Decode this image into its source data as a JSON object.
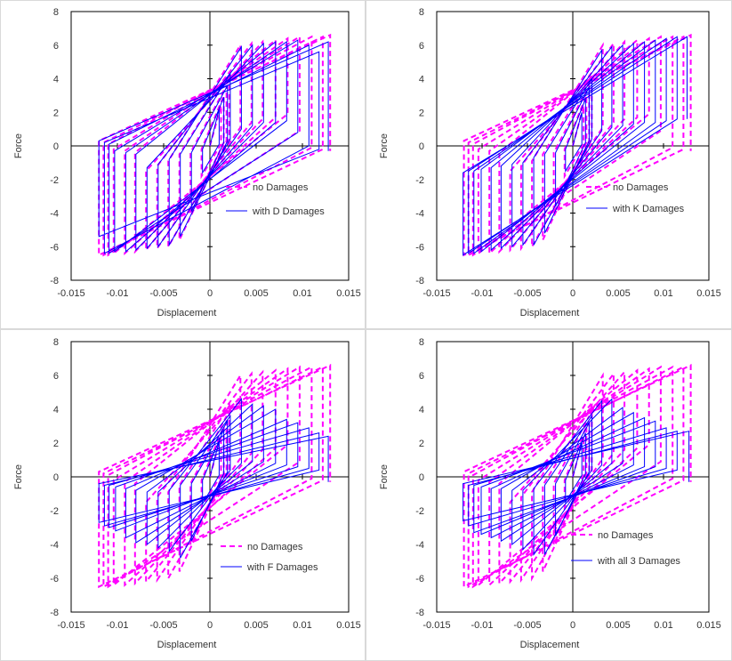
{
  "chart_data": [
    {
      "type": "line",
      "xlabel": "Displacement",
      "ylabel": "Force",
      "xlim": [
        -0.015,
        0.015
      ],
      "ylim": [
        -8,
        8
      ],
      "xticks": [
        "-0.015",
        "-0.01",
        "-0.005",
        "0",
        "0.005",
        "0.01",
        "0.015"
      ],
      "yticks": [
        "8",
        "6",
        "4",
        "2",
        "0",
        "-2",
        "-4",
        "-6",
        "-8"
      ],
      "legend_position": "lower-right",
      "series": [
        {
          "name": "no Damages",
          "style": "dashed",
          "color": "#ff00ff",
          "x": [
            0,
            0.0012,
            0.0012,
            -0.0009,
            -0.0009,
            0.0015,
            0.0015,
            -0.0021,
            -0.0021,
            0.0018,
            0.0018,
            -0.0033,
            -0.0033,
            0.0021,
            0.0021,
            -0.0045,
            -0.0045,
            0.0033,
            0.0033,
            -0.0057,
            -0.0057,
            0.0045,
            0.0045,
            -0.0069,
            -0.0069,
            0.0057,
            0.0057,
            -0.0081,
            -0.0081,
            0.0071,
            0.0071,
            -0.0092,
            -0.0092,
            0.0084,
            0.0084,
            -0.0104,
            -0.0104,
            0.0097,
            0.0097,
            -0.011,
            -0.011,
            0.011,
            0.011,
            -0.0115,
            -0.0115,
            0.0122,
            0.0122,
            -0.012,
            -0.012,
            0.013,
            0.013
          ],
          "y": [
            0,
            2.4,
            0.1,
            -1.8,
            -0.2,
            3.0,
            0.2,
            -4.0,
            -0.4,
            3.6,
            0.3,
            -5.6,
            -0.5,
            4.2,
            0.4,
            -6.0,
            -0.9,
            6.0,
            1.1,
            -6.1,
            -1.2,
            6.1,
            1.4,
            -6.2,
            -1.5,
            6.2,
            1.6,
            -6.3,
            -0.4,
            6.3,
            1.7,
            -6.4,
            -0.3,
            6.4,
            1.9,
            -6.4,
            -0.2,
            6.5,
            0.9,
            -6.5,
            0.1,
            6.5,
            -0.1,
            -6.5,
            0.2,
            6.5,
            -0.2,
            -6.5,
            0.3,
            6.6,
            -0.3
          ]
        },
        {
          "name": "with D Damages",
          "style": "solid",
          "color": "#0000ff",
          "x": [
            0,
            0.001,
            0.001,
            -0.0008,
            -0.0008,
            0.0015,
            0.0015,
            -0.002,
            -0.002,
            0.0019,
            0.0019,
            -0.0032,
            -0.0032,
            0.0022,
            0.0022,
            -0.0044,
            -0.0044,
            0.0034,
            0.0034,
            -0.0056,
            -0.0056,
            0.0046,
            0.0046,
            -0.0068,
            -0.0068,
            0.0058,
            0.0058,
            -0.008,
            -0.008,
            0.0071,
            0.0071,
            -0.0091,
            -0.0091,
            0.0083,
            0.0083,
            -0.0103,
            -0.0103,
            0.0095,
            0.0095,
            -0.0109,
            -0.0109,
            0.0107,
            0.0107,
            -0.0114,
            -0.0114,
            0.0118,
            0.0118,
            -0.012,
            -0.012,
            0.0128,
            0.0128
          ],
          "y": [
            0,
            2.2,
            0.1,
            -1.6,
            -0.2,
            2.9,
            0.2,
            -3.9,
            -0.4,
            3.6,
            0.3,
            -5.4,
            -0.5,
            4.3,
            0.4,
            -5.9,
            -0.8,
            5.9,
            1.0,
            -6.0,
            -1.1,
            6.0,
            1.2,
            -6.1,
            -1.3,
            6.1,
            1.4,
            -6.2,
            -0.5,
            6.2,
            1.4,
            -6.3,
            -0.4,
            6.2,
            1.5,
            -6.3,
            -0.3,
            6.3,
            0.8,
            -6.4,
            0.1,
            6.0,
            0.0,
            -6.4,
            0.2,
            5.6,
            -0.2,
            -5.4,
            0.3,
            6.2,
            -0.3
          ]
        }
      ]
    },
    {
      "type": "line",
      "xlabel": "Displacement",
      "ylabel": "Force",
      "xlim": [
        -0.015,
        0.015
      ],
      "ylim": [
        -8,
        8
      ],
      "xticks": [
        "-0.015",
        "-0.01",
        "-0.005",
        "0",
        "0.005",
        "0.01",
        "0.015"
      ],
      "yticks": [
        "8",
        "6",
        "4",
        "2",
        "0",
        "-2",
        "-4",
        "-6",
        "-8"
      ],
      "legend_position": "lower-right",
      "series": [
        {
          "name": "no Damages",
          "style": "dashed",
          "color": "#ff00ff",
          "x": [
            0,
            0.0012,
            0.0012,
            -0.0009,
            -0.0009,
            0.0015,
            0.0015,
            -0.0021,
            -0.0021,
            0.0018,
            0.0018,
            -0.0033,
            -0.0033,
            0.0021,
            0.0021,
            -0.0045,
            -0.0045,
            0.0033,
            0.0033,
            -0.0057,
            -0.0057,
            0.0045,
            0.0045,
            -0.0069,
            -0.0069,
            0.0057,
            0.0057,
            -0.0081,
            -0.0081,
            0.0071,
            0.0071,
            -0.0092,
            -0.0092,
            0.0084,
            0.0084,
            -0.0104,
            -0.0104,
            0.0097,
            0.0097,
            -0.011,
            -0.011,
            0.011,
            0.011,
            -0.0115,
            -0.0115,
            0.0122,
            0.0122,
            -0.012,
            -0.012,
            0.013,
            0.013
          ],
          "y": [
            0,
            2.4,
            0.1,
            -1.8,
            -0.2,
            3.0,
            0.2,
            -4.0,
            -0.4,
            3.6,
            0.3,
            -5.6,
            -0.5,
            4.2,
            0.4,
            -6.0,
            -0.9,
            6.0,
            1.1,
            -6.1,
            -1.2,
            6.1,
            1.4,
            -6.2,
            -1.5,
            6.2,
            1.6,
            -6.3,
            -0.4,
            6.3,
            1.7,
            -6.4,
            -0.3,
            6.4,
            1.9,
            -6.4,
            -0.2,
            6.5,
            0.9,
            -6.5,
            0.1,
            6.5,
            -0.1,
            -6.5,
            0.2,
            6.5,
            -0.2,
            -6.5,
            0.3,
            6.6,
            -0.3
          ]
        },
        {
          "name": "with K Damages",
          "style": "solid",
          "color": "#0000ff",
          "x": [
            0,
            0.001,
            0.001,
            -0.0008,
            -0.0008,
            0.0014,
            0.0014,
            -0.0019,
            -0.0019,
            0.0018,
            0.0018,
            -0.0031,
            -0.0031,
            0.0021,
            0.0021,
            -0.0043,
            -0.0043,
            0.0032,
            0.0032,
            -0.0055,
            -0.0055,
            0.0043,
            0.0043,
            -0.0067,
            -0.0067,
            0.0055,
            0.0055,
            -0.0079,
            -0.0079,
            0.0067,
            0.0067,
            -0.009,
            -0.009,
            0.0079,
            0.0079,
            -0.0101,
            -0.0101,
            0.0091,
            0.0091,
            -0.0109,
            -0.0109,
            0.0103,
            0.0103,
            -0.0115,
            -0.0115,
            0.0115,
            0.0115,
            -0.0121,
            -0.0121,
            0.0126,
            0.0126
          ],
          "y": [
            0,
            2.0,
            0.1,
            -1.5,
            -0.2,
            2.8,
            0.2,
            -3.6,
            -0.4,
            3.5,
            0.3,
            -5.2,
            -0.5,
            4.0,
            0.4,
            -5.9,
            -0.7,
            5.7,
            0.9,
            -5.9,
            -1.0,
            5.9,
            1.1,
            -6.0,
            -1.1,
            6.0,
            1.2,
            -6.1,
            -1.2,
            6.1,
            1.3,
            -6.2,
            -1.3,
            6.2,
            1.4,
            -6.3,
            -1.4,
            6.3,
            1.4,
            -6.4,
            -1.5,
            6.4,
            1.5,
            -6.4,
            -1.5,
            6.5,
            1.6,
            -6.5,
            -1.6,
            6.5,
            1.6
          ]
        }
      ]
    },
    {
      "type": "line",
      "xlabel": "Displacement",
      "ylabel": "Force",
      "xlim": [
        -0.015,
        0.015
      ],
      "ylim": [
        -8,
        8
      ],
      "xticks": [
        "-0.015",
        "-0.01",
        "-0.005",
        "0",
        "0.005",
        "0.01",
        "0.015"
      ],
      "yticks": [
        "8",
        "6",
        "4",
        "2",
        "0",
        "-2",
        "-4",
        "-6",
        "-8"
      ],
      "legend_position": "lower-right",
      "series": [
        {
          "name": "no Damages",
          "style": "dashed",
          "color": "#ff00ff",
          "x": [
            0,
            0.0012,
            0.0012,
            -0.0009,
            -0.0009,
            0.0015,
            0.0015,
            -0.0021,
            -0.0021,
            0.0018,
            0.0018,
            -0.0033,
            -0.0033,
            0.0021,
            0.0021,
            -0.0045,
            -0.0045,
            0.0033,
            0.0033,
            -0.0057,
            -0.0057,
            0.0045,
            0.0045,
            -0.0069,
            -0.0069,
            0.0057,
            0.0057,
            -0.0081,
            -0.0081,
            0.0071,
            0.0071,
            -0.0092,
            -0.0092,
            0.0084,
            0.0084,
            -0.0104,
            -0.0104,
            0.0097,
            0.0097,
            -0.011,
            -0.011,
            0.011,
            0.011,
            -0.0115,
            -0.0115,
            0.0122,
            0.0122,
            -0.012,
            -0.012,
            0.013,
            0.013
          ],
          "y": [
            0,
            2.4,
            0.1,
            -1.8,
            -0.2,
            3.0,
            0.2,
            -4.0,
            -0.4,
            3.6,
            0.3,
            -5.6,
            -0.5,
            4.2,
            0.4,
            -6.0,
            -0.9,
            6.0,
            1.1,
            -6.1,
            -1.2,
            6.1,
            1.4,
            -6.2,
            -1.5,
            6.2,
            1.6,
            -6.3,
            -0.4,
            6.3,
            1.7,
            -6.4,
            -0.3,
            6.4,
            1.9,
            -6.4,
            -0.2,
            6.5,
            0.9,
            -6.5,
            0.1,
            6.5,
            -0.1,
            -6.5,
            0.2,
            6.5,
            -0.2,
            -6.5,
            0.3,
            6.6,
            -0.3
          ]
        },
        {
          "name": "with F Damages",
          "style": "solid",
          "color": "#0000ff",
          "x": [
            0,
            0.001,
            0.001,
            -0.0008,
            -0.0008,
            0.0015,
            0.0015,
            -0.002,
            -0.002,
            0.0019,
            0.0019,
            -0.0032,
            -0.0032,
            0.0022,
            0.0022,
            -0.0044,
            -0.0044,
            0.0034,
            0.0034,
            -0.0056,
            -0.0056,
            0.0046,
            0.0046,
            -0.0068,
            -0.0068,
            0.0058,
            0.0058,
            -0.008,
            -0.008,
            0.0071,
            0.0071,
            -0.0091,
            -0.0091,
            0.0083,
            0.0083,
            -0.0102,
            -0.0102,
            0.0095,
            0.0095,
            -0.0109,
            -0.0109,
            0.0107,
            0.0107,
            -0.0114,
            -0.0114,
            0.0118,
            0.0118,
            -0.012,
            -0.012,
            0.0128,
            0.0128
          ],
          "y": [
            0,
            2.1,
            0.1,
            -1.6,
            -0.2,
            2.8,
            0.2,
            -3.8,
            -0.4,
            3.3,
            0.3,
            -4.8,
            -0.5,
            3.6,
            0.4,
            -4.4,
            -0.8,
            4.6,
            0.8,
            -4.2,
            -0.9,
            4.3,
            0.9,
            -4.0,
            -0.9,
            4.2,
            0.9,
            -3.9,
            -0.8,
            4.0,
            0.8,
            -3.6,
            -0.7,
            3.4,
            0.7,
            -3.2,
            -0.6,
            3.2,
            0.6,
            -3.0,
            -0.5,
            2.9,
            0.5,
            -2.9,
            -0.5,
            2.6,
            0.4,
            -2.7,
            -0.4,
            2.4,
            -0.3
          ]
        }
      ]
    },
    {
      "type": "line",
      "xlabel": "Displacement",
      "ylabel": "Force",
      "xlim": [
        -0.015,
        0.015
      ],
      "ylim": [
        -8,
        8
      ],
      "xticks": [
        "-0.015",
        "-0.01",
        "-0.005",
        "0",
        "0.005",
        "0.01",
        "0.015"
      ],
      "yticks": [
        "8",
        "6",
        "4",
        "2",
        "0",
        "-2",
        "-4",
        "-6",
        "-8"
      ],
      "legend_position": "lower-right",
      "series": [
        {
          "name": "no Damages",
          "style": "dashed",
          "color": "#ff00ff",
          "x": [
            0,
            0.0012,
            0.0012,
            -0.0009,
            -0.0009,
            0.0015,
            0.0015,
            -0.0021,
            -0.0021,
            0.0018,
            0.0018,
            -0.0033,
            -0.0033,
            0.0021,
            0.0021,
            -0.0045,
            -0.0045,
            0.0033,
            0.0033,
            -0.0057,
            -0.0057,
            0.0045,
            0.0045,
            -0.0069,
            -0.0069,
            0.0057,
            0.0057,
            -0.0081,
            -0.0081,
            0.0071,
            0.0071,
            -0.0092,
            -0.0092,
            0.0084,
            0.0084,
            -0.0104,
            -0.0104,
            0.0097,
            0.0097,
            -0.011,
            -0.011,
            0.011,
            0.011,
            -0.0115,
            -0.0115,
            0.0122,
            0.0122,
            -0.012,
            -0.012,
            0.013,
            0.013
          ],
          "y": [
            0,
            2.4,
            0.1,
            -1.8,
            -0.2,
            3.0,
            0.2,
            -4.0,
            -0.4,
            3.6,
            0.3,
            -5.6,
            -0.5,
            4.2,
            0.4,
            -6.0,
            -0.9,
            6.0,
            1.1,
            -6.1,
            -1.2,
            6.1,
            1.4,
            -6.2,
            -1.5,
            6.2,
            1.6,
            -6.3,
            -0.4,
            6.3,
            1.7,
            -6.4,
            -0.3,
            6.4,
            1.9,
            -6.4,
            -0.2,
            6.5,
            0.9,
            -6.5,
            0.1,
            6.5,
            -0.1,
            -6.5,
            0.2,
            6.5,
            -0.2,
            -6.5,
            0.3,
            6.6,
            -0.3
          ]
        },
        {
          "name": "with all 3 Damages",
          "style": "solid",
          "color": "#0000ff",
          "x": [
            0,
            0.001,
            0.001,
            -0.0008,
            -0.0008,
            0.0014,
            0.0014,
            -0.0019,
            -0.0019,
            0.0018,
            0.0018,
            -0.0031,
            -0.0031,
            0.0021,
            0.0021,
            -0.0043,
            -0.0043,
            0.0032,
            0.0032,
            -0.0055,
            -0.0055,
            0.0043,
            0.0043,
            -0.0067,
            -0.0067,
            0.0055,
            0.0055,
            -0.0079,
            -0.0079,
            0.0067,
            0.0067,
            -0.009,
            -0.009,
            0.0079,
            0.0079,
            -0.0101,
            -0.0101,
            0.0091,
            0.0091,
            -0.0109,
            -0.0109,
            0.0103,
            0.0103,
            -0.0115,
            -0.0115,
            0.0115,
            0.0115,
            -0.0121,
            -0.0121,
            0.0128,
            0.0128
          ],
          "y": [
            0,
            2.0,
            0.1,
            -1.5,
            -0.2,
            2.6,
            0.2,
            -3.5,
            -0.4,
            3.2,
            0.3,
            -4.6,
            -0.5,
            3.6,
            0.4,
            -4.6,
            -0.7,
            4.5,
            0.7,
            -4.3,
            -0.8,
            4.6,
            0.8,
            -4.0,
            -0.8,
            4.1,
            0.8,
            -3.8,
            -0.7,
            3.8,
            0.7,
            -3.6,
            -0.7,
            3.5,
            0.6,
            -3.4,
            -0.6,
            3.3,
            0.6,
            -3.3,
            -0.5,
            2.9,
            0.5,
            -2.9,
            -0.5,
            2.7,
            0.4,
            -2.6,
            -0.4,
            2.7,
            -0.3
          ]
        }
      ]
    }
  ]
}
